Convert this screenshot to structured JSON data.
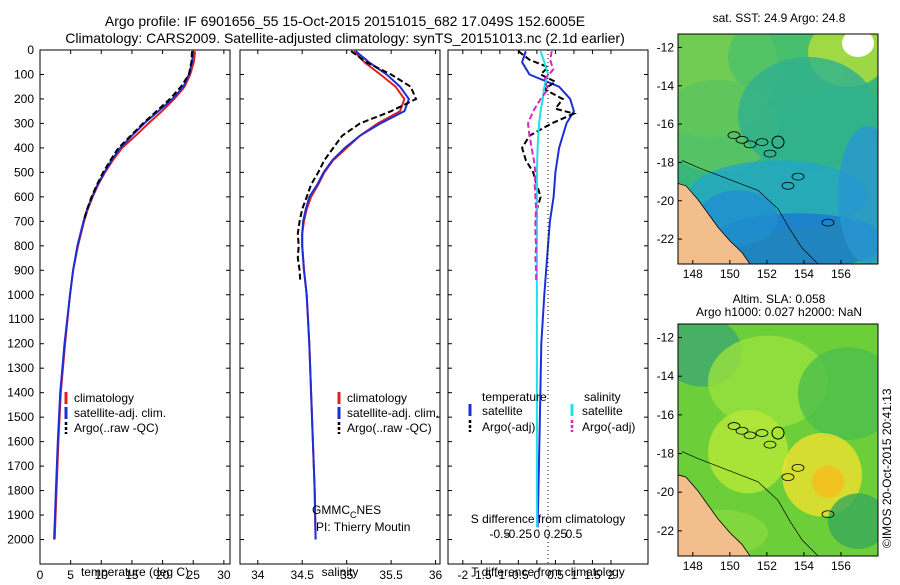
{
  "header": {
    "line1": "Argo profile: IF 6901656_55 15-Oct-2015 20151015_682 17.049S 152.6005E",
    "line2": "Climatology: CARS2009. Satellite-adjusted climatology: synTS_20151013.nc (2.1d earlier)"
  },
  "colors": {
    "climatology": "#e02020",
    "satellite": "#1c2fd6",
    "argo": "#000000",
    "sat_salinity": "#22e0e8",
    "argo_salinity": "#e020c8",
    "land": "#f2be8c"
  },
  "legends": {
    "profile": [
      "climatology",
      "satellite-adj. clim.",
      "Argo(..raw -QC)"
    ],
    "diff_temperature_title": "temperature",
    "diff_salinity_title": "salinity",
    "diff_temperature": [
      "satellite",
      "Argo(-adj)"
    ],
    "diff_salinity": [
      "satellite",
      "Argo(-adj)"
    ]
  },
  "credits": {
    "source_main": "GMMC",
    "source_sub": "C",
    "source_tail": "NES",
    "pi": "PI: Thierry Moutin"
  },
  "maps": {
    "sst_title": "sat. SST: 24.9 Argo: 24.8",
    "sla_title_1": "Altim. SLA: 0.058",
    "sla_title_2": "Argo h1000: 0.027 h2000: NaN",
    "x_ticks": [
      "148",
      "150",
      "152",
      "154",
      "156"
    ],
    "y_ticks": [
      "-12",
      "-14",
      "-16",
      "-18",
      "-20",
      "-22"
    ]
  },
  "stamp": "©IMOS 20-Oct-2015 20:41:13",
  "chart_data": [
    {
      "type": "line",
      "name": "temperature-profile",
      "xlabel": "temperature (deg C)",
      "ylabel": "",
      "xlim": [
        0,
        31
      ],
      "ylim": [
        2100,
        0
      ],
      "x_ticks": [
        "0",
        "5",
        "10",
        "15",
        "20",
        "25",
        "30"
      ],
      "y_ticks": [
        "0",
        "100",
        "200",
        "300",
        "400",
        "500",
        "600",
        "700",
        "800",
        "900",
        "1000",
        "1100",
        "1200",
        "1300",
        "1400",
        "1500",
        "1600",
        "1700",
        "1800",
        "1900",
        "2000"
      ],
      "series": [
        {
          "name": "climatology",
          "depth": [
            5,
            50,
            100,
            150,
            200,
            250,
            300,
            350,
            400,
            450,
            500,
            550,
            600,
            650,
            700,
            800,
            900,
            1000,
            1200,
            1400,
            1600,
            1800,
            2000
          ],
          "values": [
            25.3,
            25.1,
            24.5,
            23.6,
            21.9,
            19.9,
            17.7,
            15.6,
            13.4,
            11.9,
            10.6,
            9.5,
            8.6,
            7.8,
            7.2,
            6.2,
            5.4,
            4.9,
            4.1,
            3.4,
            3.0,
            2.7,
            2.4
          ]
        },
        {
          "name": "satellite-adj. clim.",
          "depth": [
            5,
            50,
            100,
            150,
            200,
            250,
            300,
            350,
            400,
            450,
            500,
            550,
            600,
            650,
            700,
            800,
            900,
            1000,
            1200,
            1400,
            1600,
            1800,
            2000
          ],
          "values": [
            25.0,
            24.8,
            24.3,
            23.4,
            21.6,
            19.3,
            17.0,
            15.0,
            13.1,
            11.7,
            10.5,
            9.4,
            8.5,
            7.7,
            7.1,
            6.1,
            5.4,
            4.9,
            4.0,
            3.3,
            2.9,
            2.6,
            2.3
          ]
        },
        {
          "name": "Argo(..raw -QC)",
          "depth": [
            5,
            50,
            100,
            150,
            200,
            250,
            300,
            350,
            400,
            450,
            500,
            550,
            600,
            650,
            700
          ],
          "values": [
            24.8,
            24.7,
            24.3,
            23.0,
            21.2,
            19.0,
            16.8,
            14.8,
            12.8,
            11.5,
            10.3,
            9.3,
            8.4,
            7.7,
            7.1
          ]
        }
      ]
    },
    {
      "type": "line",
      "name": "salinity-profile",
      "xlabel": "salinity",
      "xlim": [
        33.8,
        36.05
      ],
      "ylim": [
        2100,
        0
      ],
      "x_ticks": [
        "34",
        "34.5",
        "35",
        "35.5",
        "36"
      ],
      "series": [
        {
          "name": "climatology",
          "depth": [
            5,
            50,
            100,
            150,
            200,
            250,
            300,
            350,
            400,
            450,
            500,
            550,
            600,
            650,
            700,
            750,
            800,
            900,
            1000,
            1200,
            1400,
            1600,
            1800,
            2000
          ],
          "values": [
            35.08,
            35.2,
            35.38,
            35.55,
            35.65,
            35.6,
            35.35,
            35.15,
            35.0,
            34.85,
            34.75,
            34.68,
            34.6,
            34.55,
            34.52,
            34.5,
            34.5,
            34.52,
            34.55,
            34.58,
            34.6,
            34.62,
            34.64,
            34.65
          ]
        },
        {
          "name": "satellite-adj. clim.",
          "depth": [
            5,
            50,
            100,
            150,
            200,
            250,
            300,
            350,
            400,
            450,
            500,
            550,
            600,
            650,
            700,
            750,
            800,
            900,
            1000,
            1200,
            1400,
            1600,
            1800,
            2000
          ],
          "values": [
            35.1,
            35.25,
            35.45,
            35.6,
            35.7,
            35.65,
            35.38,
            35.15,
            34.98,
            34.84,
            34.74,
            34.67,
            34.58,
            34.54,
            34.51,
            34.5,
            34.5,
            34.52,
            34.55,
            34.58,
            34.6,
            34.62,
            34.64,
            34.65
          ]
        },
        {
          "name": "Argo(..raw -QC)",
          "depth": [
            5,
            50,
            100,
            150,
            200,
            250,
            300,
            350,
            400,
            450,
            500,
            550,
            600,
            650,
            700,
            750,
            800,
            850,
            900,
            950
          ],
          "values": [
            35.05,
            35.22,
            35.5,
            35.72,
            35.78,
            35.5,
            35.15,
            34.95,
            34.85,
            34.75,
            34.68,
            34.6,
            34.55,
            34.5,
            34.47,
            34.45,
            34.46,
            34.45,
            34.47,
            34.48
          ]
        }
      ]
    },
    {
      "type": "line",
      "name": "difference-profile",
      "xlabel": "T difference from climatology",
      "xlabel_top": "S difference from climatology",
      "xlim": [
        -2.4,
        3.0
      ],
      "ylim": [
        2100,
        0
      ],
      "x_ticks": [
        "-2",
        "-1.5",
        "-1",
        "-0.5",
        "0",
        "0.5",
        "1",
        "1.5",
        "2"
      ],
      "x_ticks_top": [
        "-0.5",
        "-0.25",
        "0",
        "0.25",
        "0.5"
      ],
      "series": [
        {
          "name": "T satellite",
          "depth": [
            5,
            50,
            100,
            150,
            200,
            250,
            300,
            400,
            500,
            600,
            700,
            800,
            1000,
            1200,
            1500,
            1800,
            1950
          ],
          "values": [
            -0.3,
            -0.4,
            -0.2,
            0.6,
            0.9,
            1.0,
            0.8,
            0.6,
            0.5,
            0.45,
            0.35,
            0.3,
            0.2,
            0.12,
            0.08,
            0.04,
            0.02
          ]
        },
        {
          "name": "T Argo(-adj)",
          "depth": [
            5,
            40,
            70,
            100,
            130,
            160,
            200,
            240,
            260,
            300,
            350,
            400,
            450,
            500,
            550,
            600,
            650,
            700
          ],
          "values": [
            -0.5,
            -0.2,
            0.3,
            0.1,
            0.5,
            0.2,
            0.7,
            0.5,
            1.0,
            0.4,
            -0.2,
            -0.4,
            -0.3,
            -0.1,
            0.0,
            0.1,
            0.0,
            0.0
          ]
        },
        {
          "name": "S satellite",
          "depth": [
            5,
            50,
            100,
            150,
            200,
            250,
            300,
            400,
            500,
            700,
            900,
            1100,
            1400,
            1700,
            1950
          ],
          "values": [
            0.05,
            0.1,
            0.15,
            0.1,
            0.08,
            0.05,
            0.03,
            0.01,
            0.0,
            0.0,
            0.0,
            0.0,
            0.0,
            0.0,
            0.0
          ]
        },
        {
          "name": "S Argo(-adj)",
          "depth": [
            5,
            40,
            80,
            120,
            160,
            200,
            250,
            300,
            350,
            400,
            450,
            500,
            550,
            600,
            650,
            700,
            750,
            800,
            850,
            900,
            950
          ],
          "values": [
            0.2,
            0.18,
            0.22,
            0.1,
            0.15,
            0.05,
            -0.05,
            -0.12,
            -0.1,
            -0.07,
            -0.04,
            -0.02,
            -0.03,
            -0.02,
            -0.01,
            -0.02,
            -0.02,
            -0.01,
            -0.02,
            -0.01,
            -0.01
          ]
        }
      ]
    }
  ]
}
